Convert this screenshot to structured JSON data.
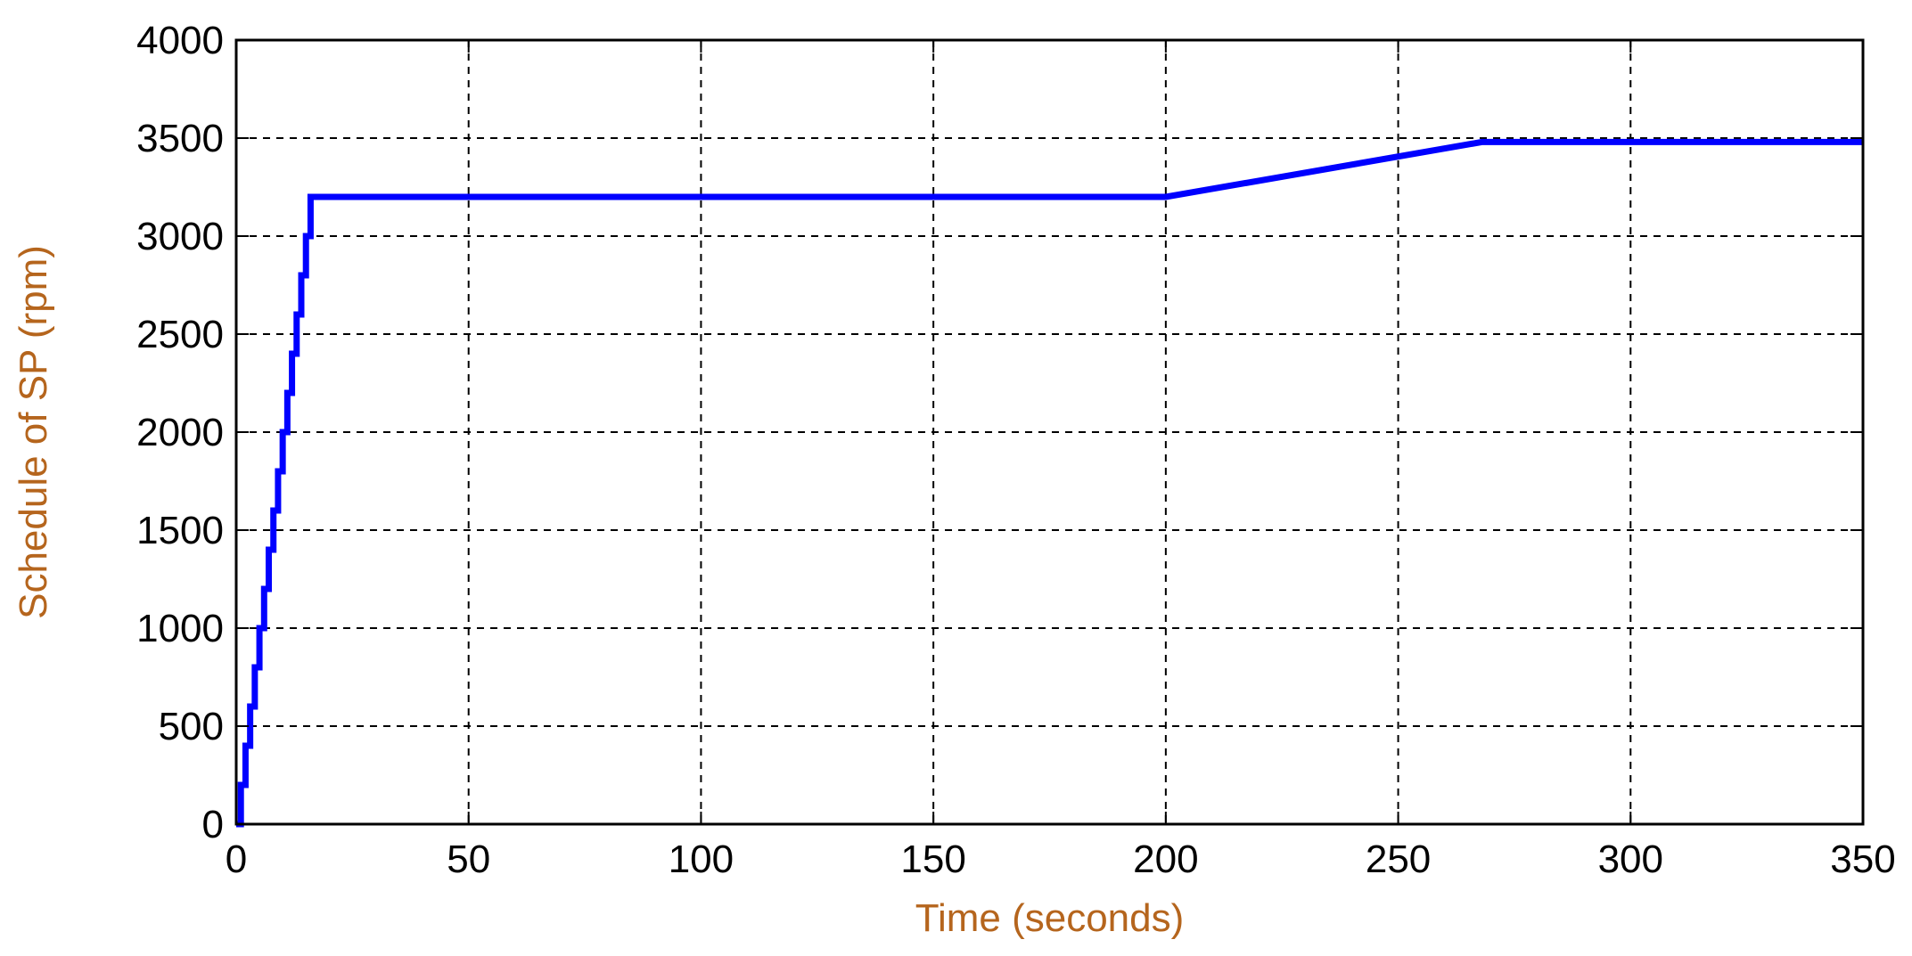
{
  "chart_data": {
    "type": "line",
    "title": "",
    "xlabel": "Time (seconds)",
    "ylabel": "Schedule of SP (rpm)",
    "xlim": [
      0,
      350
    ],
    "ylim": [
      0,
      4000
    ],
    "xticks": [
      0,
      50,
      100,
      150,
      200,
      250,
      300,
      350
    ],
    "yticks": [
      0,
      500,
      1000,
      1500,
      2000,
      2500,
      3000,
      3500,
      4000
    ],
    "xtick_labels": [
      "0",
      "50",
      "100",
      "150",
      "200",
      "250",
      "300",
      "350"
    ],
    "ytick_labels": [
      "0",
      "500",
      "1000",
      "1500",
      "2000",
      "2500",
      "3000",
      "3500",
      "4000"
    ],
    "grid": true,
    "series": [
      {
        "color": "#0000ff",
        "x": [
          0,
          1,
          1,
          2,
          2,
          3,
          3,
          4,
          4,
          5,
          5,
          6,
          6,
          7,
          7,
          8,
          8,
          9,
          9,
          10,
          10,
          11,
          11,
          12,
          12,
          13,
          13,
          14,
          14,
          15,
          15,
          16,
          16,
          200,
          268,
          350
        ],
        "y": [
          0,
          0,
          200,
          200,
          400,
          400,
          600,
          600,
          800,
          800,
          1000,
          1000,
          1200,
          1200,
          1400,
          1400,
          1600,
          1600,
          1800,
          1800,
          2000,
          2000,
          2200,
          2200,
          2400,
          2400,
          2600,
          2600,
          2800,
          2800,
          3000,
          3000,
          3200,
          3200,
          3480,
          3480
        ]
      }
    ],
    "colors": {
      "axis_label": "#b5651d",
      "line": "#0000ff",
      "grid": "#000000"
    }
  }
}
